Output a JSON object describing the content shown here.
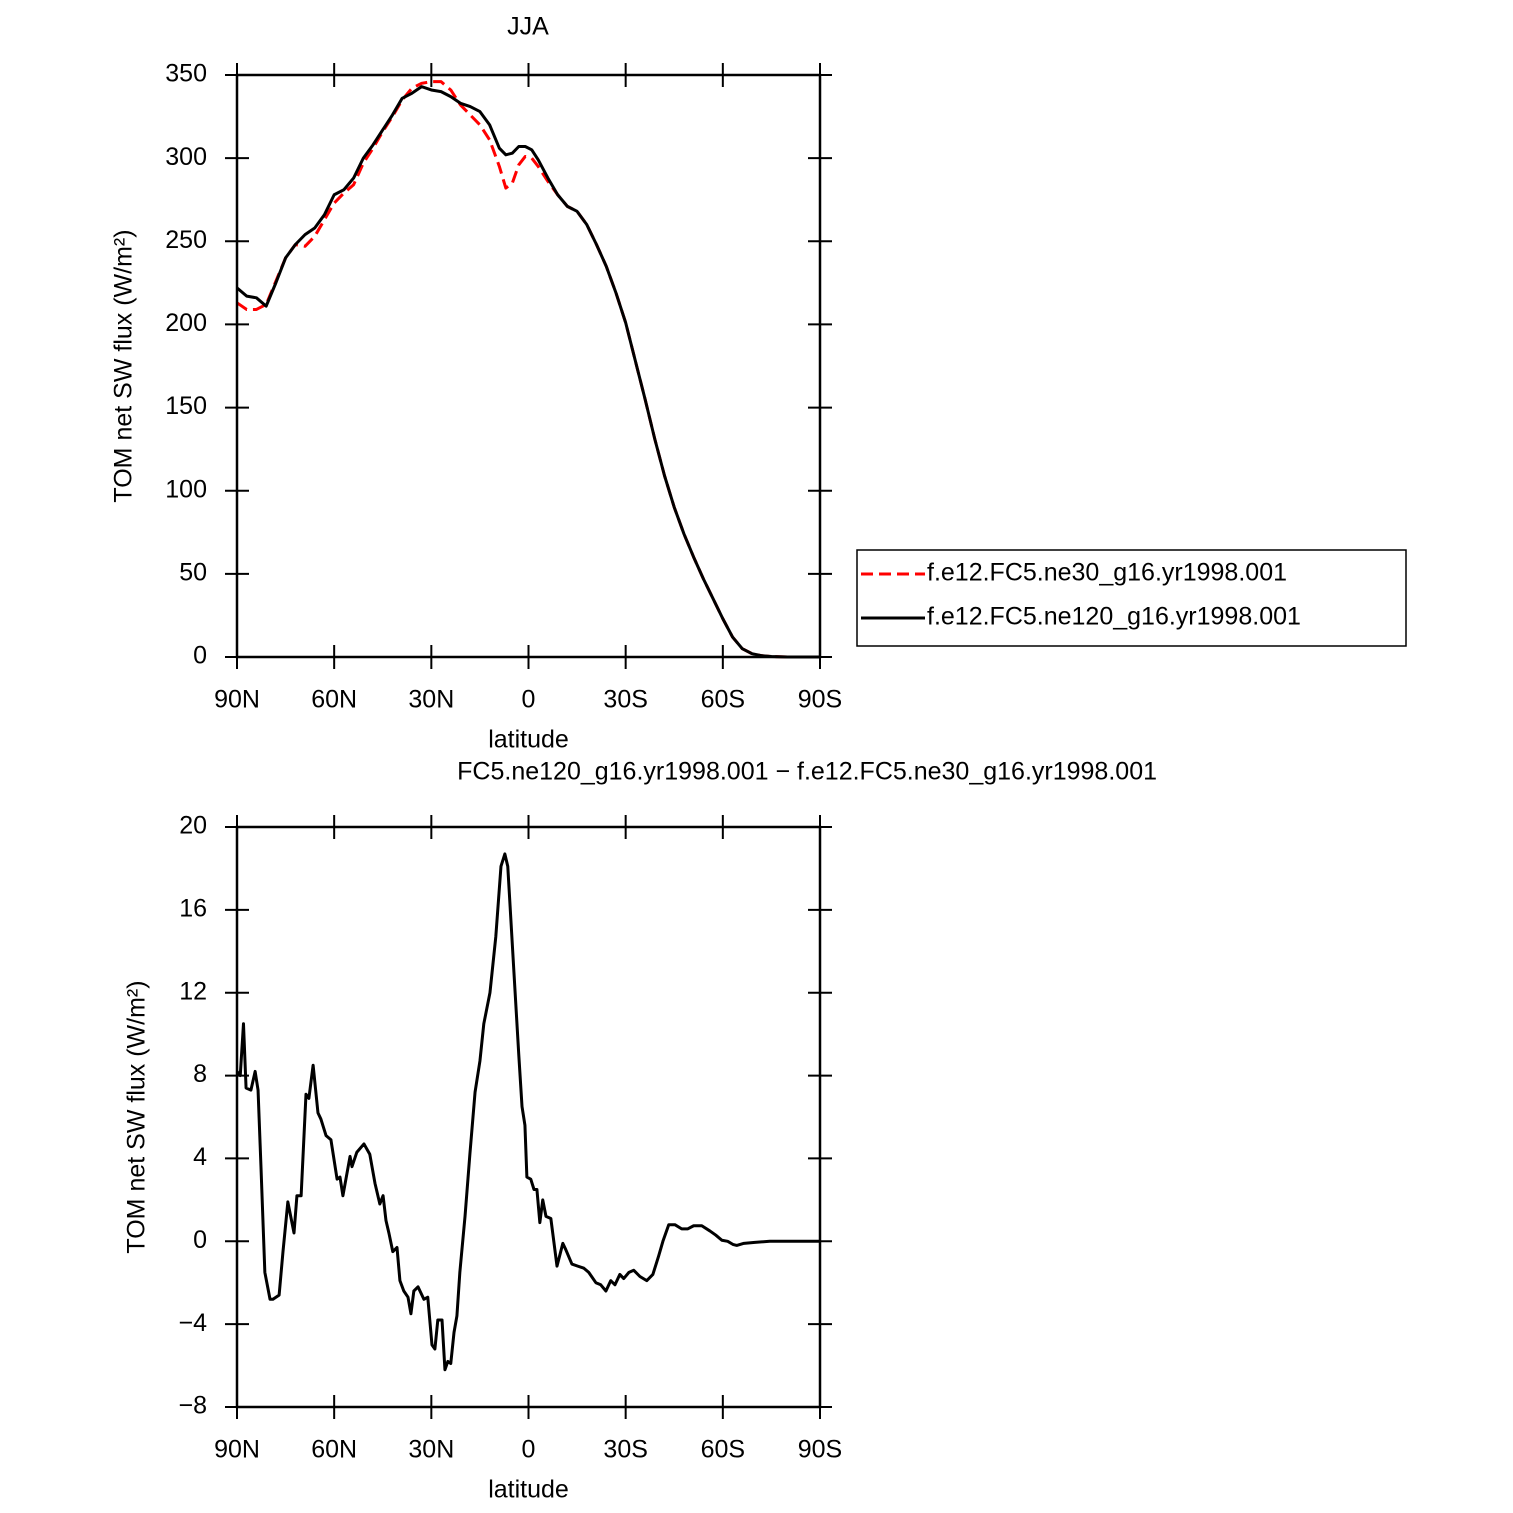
{
  "chart_data": [
    {
      "type": "line",
      "title": "JJA",
      "xlabel": "latitude",
      "ylabel": "TOM net SW flux (W/m²)",
      "xlim": [
        90,
        -90
      ],
      "ylim": [
        0,
        350
      ],
      "xticks": [
        {
          "value": 90,
          "label": "90N"
        },
        {
          "value": 60,
          "label": "60N"
        },
        {
          "value": 30,
          "label": "30N"
        },
        0,
        {
          "value": -30,
          "label": "30S"
        },
        {
          "value": -60,
          "label": "60S"
        },
        {
          "value": -90,
          "label": "90S"
        }
      ],
      "yticks": [
        0,
        50,
        100,
        150,
        200,
        250,
        300,
        350
      ],
      "legend": "outside-right",
      "x": [
        90,
        87,
        84,
        81,
        78,
        75,
        72,
        69,
        66,
        63,
        60,
        57,
        54,
        51,
        48,
        45,
        42,
        39,
        36,
        33,
        30,
        27,
        24,
        21,
        18,
        15,
        12,
        9,
        7,
        5,
        3,
        1,
        -1,
        -3,
        -6,
        -9,
        -12,
        -15,
        -18,
        -21,
        -24,
        -27,
        -30,
        -33,
        -36,
        -39,
        -42,
        -45,
        -48,
        -51,
        -54,
        -57,
        -60,
        -63,
        -66,
        -69,
        -72,
        -75,
        -80,
        -85,
        -90
      ],
      "series": [
        {
          "name": "f.e12.FC5.ne30_g16.yr1998.001",
          "color": "#ff0000",
          "linestyle": "dashed",
          "values": [
            213,
            209,
            209,
            212,
            226,
            240,
            248,
            247,
            253,
            263,
            273,
            279,
            284,
            297,
            306,
            316,
            325,
            335,
            342,
            345,
            346,
            346,
            341,
            332,
            326,
            320,
            311,
            295,
            282,
            285,
            296,
            301,
            300,
            295,
            286,
            278,
            271,
            268,
            260,
            248,
            235,
            219,
            201,
            178,
            155,
            131,
            109,
            90,
            74,
            60,
            47,
            35,
            23,
            12,
            5,
            2,
            0.8,
            0.3,
            0,
            0,
            0
          ]
        },
        {
          "name": "f.e12.FC5.ne120_g16.yr1998.001",
          "color": "#000000",
          "linestyle": "solid",
          "values": [
            222,
            217,
            216,
            211,
            225,
            240,
            248,
            254,
            258,
            266,
            278,
            281,
            288,
            300,
            308,
            317,
            326,
            336,
            339,
            343,
            341,
            340,
            337,
            333,
            331,
            328,
            320,
            306,
            302,
            303,
            307,
            307,
            305,
            299,
            288,
            278,
            271,
            268,
            260,
            248,
            235,
            219,
            201,
            178,
            155,
            131,
            109,
            90,
            74,
            60,
            47,
            35,
            23,
            12,
            5,
            2,
            0.8,
            0.3,
            0,
            0,
            0
          ]
        }
      ]
    },
    {
      "type": "line",
      "title": "FC5.ne120_g16.yr1998.001 − f.e12.FC5.ne30_g16.yr1998.001",
      "xlabel": "latitude",
      "ylabel": "TOM net SW flux (W/m²)",
      "xlim": [
        90,
        -90
      ],
      "ylim": [
        -8,
        20
      ],
      "xticks": [
        {
          "value": 90,
          "label": "90N"
        },
        {
          "value": 60,
          "label": "60N"
        },
        {
          "value": 30,
          "label": "30N"
        },
        0,
        {
          "value": -30,
          "label": "30S"
        },
        {
          "value": -60,
          "label": "60S"
        },
        {
          "value": -90,
          "label": "90S"
        }
      ],
      "yticks": [
        {
          "value": -8,
          "label": "−8"
        },
        {
          "value": -4,
          "label": "−4"
        },
        0,
        4,
        8,
        12,
        16,
        20
      ],
      "x": [
        90,
        89,
        88,
        87.2,
        85.7,
        84.4,
        83.5,
        82.6,
        81.4,
        79.8,
        78.9,
        77,
        75.8,
        74.3,
        72.4,
        71.5,
        70.2,
        68.7,
        67.8,
        66.5,
        65,
        64.1,
        62.5,
        61,
        59.1,
        58.2,
        57.3,
        55.1,
        54.5,
        53,
        50.8,
        49,
        47.4,
        45.9,
        44.9,
        44,
        43.1,
        41.9,
        40.6,
        39.7,
        38.5,
        37.2,
        36.3,
        35.4,
        34.1,
        32.3,
        31.1,
        29.8,
        28.9,
        28,
        26.7,
        25.8,
        24.9,
        24,
        23,
        22.1,
        21.2,
        19.6,
        18.1,
        16.5,
        15,
        13.8,
        11.9,
        10.1,
        8.5,
        7.3,
        6.4,
        4.5,
        3,
        2,
        1.1,
        0.5,
        -0.7,
        -1.7,
        -2.6,
        -3.5,
        -4.4,
        -5.4,
        -6.9,
        -8.8,
        -10.6,
        -11.5,
        -13.4,
        -15.2,
        -17.1,
        -18.6,
        -20.8,
        -22.3,
        -23.9,
        -25.4,
        -26.7,
        -28.2,
        -29.4,
        -31,
        -32.5,
        -34.4,
        -36.5,
        -38.4,
        -40.2,
        -41.5,
        -43.3,
        -45.2,
        -47.3,
        -49.2,
        -51,
        -53.5,
        -56,
        -57.8,
        -59.7,
        -61.5,
        -63.1,
        -64.3,
        -66.5,
        -69.9,
        -74.5,
        -90
      ],
      "series": [
        {
          "name": "FC5.ne120_g16.yr1998.001 − f.e12.FC5.ne30_g16.yr1998.001",
          "color": "#000000",
          "linestyle": "solid",
          "values": [
            8.2,
            8,
            10.5,
            7.4,
            7.3,
            8.2,
            7.3,
            3.6,
            -1.5,
            -2.8,
            -2.8,
            -2.6,
            -0.5,
            1.9,
            0.4,
            2.2,
            2.2,
            7.1,
            6.9,
            8.5,
            6.2,
            5.9,
            5.1,
            4.9,
            3,
            3.1,
            2.2,
            4.1,
            3.6,
            4.3,
            4.7,
            4.2,
            2.8,
            1.8,
            2.2,
            1,
            0.4,
            -0.5,
            -0.3,
            -1.9,
            -2.4,
            -2.7,
            -3.5,
            -2.4,
            -2.2,
            -2.8,
            -2.7,
            -5,
            -5.2,
            -3.8,
            -3.8,
            -6.2,
            -5.8,
            -5.9,
            -4.4,
            -3.6,
            -1.5,
            1.2,
            4.2,
            7.2,
            8.7,
            10.5,
            12,
            14.7,
            18.1,
            18.7,
            18.1,
            13,
            9,
            6.5,
            5.6,
            3.1,
            3,
            2.5,
            2.5,
            0.9,
            2,
            1.2,
            1.1,
            -1.2,
            -0.1,
            -0.4,
            -1.1,
            -1.2,
            -1.3,
            -1.5,
            -2,
            -2.1,
            -2.4,
            -1.9,
            -2.1,
            -1.6,
            -1.8,
            -1.5,
            -1.4,
            -1.7,
            -1.9,
            -1.6,
            -0.7,
            0,
            0.8,
            0.8,
            0.6,
            0.6,
            0.75,
            0.75,
            0.5,
            0.3,
            0.05,
            0,
            -0.15,
            -0.2,
            -0.1,
            -0.05,
            0,
            0
          ]
        }
      ]
    }
  ]
}
